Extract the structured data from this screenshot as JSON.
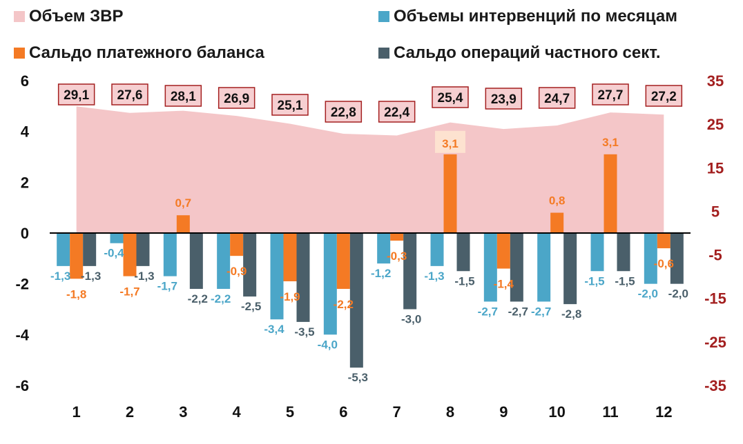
{
  "legend": [
    {
      "label": "Объем ЗВР",
      "color": "#f4c6c8"
    },
    {
      "label": "Объемы интервенций по месяцам",
      "color": "#4ba6c8"
    },
    {
      "label": "Сальдо платежного баланса",
      "color": "#f47a24"
    },
    {
      "label": "Сальдо операций частного сект.",
      "color": "#4a5f6a"
    }
  ],
  "chart_data": {
    "type": "bar",
    "categories": [
      "1",
      "2",
      "3",
      "4",
      "5",
      "6",
      "7",
      "8",
      "9",
      "10",
      "11",
      "12"
    ],
    "series": [
      {
        "name": "Объемы интервенций по месяцам",
        "type": "bar",
        "axis": "left",
        "color": "#4ba6c8",
        "values": [
          -1.3,
          -0.4,
          -1.7,
          -2.2,
          -3.4,
          -4.0,
          -1.2,
          -1.3,
          -2.7,
          -2.7,
          -1.5,
          -2.0
        ],
        "labels": [
          "-1,3",
          "-0,4",
          "-1,7",
          "-2,2",
          "-3,4",
          "-4,0",
          "-1,2",
          "-1,3",
          "-2,7",
          "-2,7",
          "-1,5",
          "-2,0"
        ]
      },
      {
        "name": "Сальдо платежного баланса",
        "type": "bar",
        "axis": "left",
        "color": "#f47a24",
        "values": [
          -1.8,
          -1.7,
          0.7,
          -0.9,
          -1.9,
          -2.2,
          -0.3,
          3.1,
          -1.4,
          0.8,
          3.1,
          -0.6
        ],
        "labels": [
          "-1,8",
          "-1,7",
          "0,7",
          "-0,9",
          "-1,9",
          "-2,2",
          "-0,3",
          "3,1",
          "-1,4",
          "0,8",
          "3,1",
          "-0,6"
        ]
      },
      {
        "name": "Сальдо операций частного сект.",
        "type": "bar",
        "axis": "left",
        "color": "#4a5f6a",
        "values": [
          -1.3,
          -1.3,
          -2.2,
          -2.5,
          -3.5,
          -5.3,
          -3.0,
          -1.5,
          -2.7,
          -2.8,
          -1.5,
          -2.0
        ],
        "labels": [
          "-1,3",
          "-1,3",
          "-2,2",
          "-2,5",
          "-3,5",
          "-5,3",
          "-3,0",
          "-1,5",
          "-2,7",
          "-2,8",
          "-1,5",
          "-2,0"
        ]
      },
      {
        "name": "Объем ЗВР",
        "type": "area",
        "axis": "right",
        "color": "#f4c6c8",
        "values": [
          29.1,
          27.6,
          28.1,
          26.9,
          25.1,
          22.8,
          22.4,
          25.4,
          23.9,
          24.7,
          27.7,
          27.2
        ],
        "labels": [
          "29,1",
          "27,6",
          "28,1",
          "26,9",
          "25,1",
          "22,8",
          "22,4",
          "25,4",
          "23,9",
          "24,7",
          "27,7",
          "27,2"
        ]
      }
    ],
    "y_left": {
      "ylim": [
        -6,
        6
      ],
      "ticks": [
        "-6",
        "-4",
        "-2",
        "0",
        "2",
        "4",
        "6"
      ]
    },
    "y_right": {
      "ylim": [
        -35,
        35
      ],
      "ticks": [
        "-35",
        "-25",
        "-15",
        "-5",
        "5",
        "15",
        "25",
        "35"
      ],
      "color": "#a31f1f"
    },
    "grid": false,
    "legend_position": "top"
  }
}
